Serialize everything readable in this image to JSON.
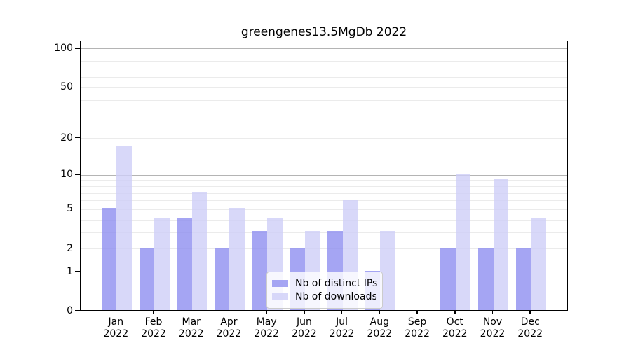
{
  "title": "greengenes13.5MgDb 2022",
  "chart_data": {
    "type": "bar",
    "title": "greengenes13.5MgDb 2022",
    "x_tick_months": [
      "Jan",
      "Feb",
      "Mar",
      "Apr",
      "May",
      "Jun",
      "Jul",
      "Aug",
      "Sep",
      "Oct",
      "Nov",
      "Dec"
    ],
    "x_tick_year": "2022",
    "categories": [
      "Jan 2022",
      "Feb 2022",
      "Mar 2022",
      "Apr 2022",
      "May 2022",
      "Jun 2022",
      "Jul 2022",
      "Aug 2022",
      "Sep 2022",
      "Oct 2022",
      "Nov 2022",
      "Dec 2022"
    ],
    "series": [
      {
        "name": "Nb of distinct IPs",
        "color": "rgba(143,143,240,0.8)",
        "values": [
          5,
          2,
          4,
          2,
          3,
          2,
          3,
          1,
          0,
          2,
          2,
          2
        ]
      },
      {
        "name": "Nb of downloads",
        "color": "rgba(206,206,248,0.8)",
        "values": [
          17,
          4,
          7,
          5,
          4,
          3,
          6,
          3,
          0,
          10,
          9,
          4
        ]
      }
    ],
    "yscale": "log1p",
    "ylim": [
      0,
      114.6
    ],
    "ytick_values": [
      0,
      1,
      2,
      5,
      10,
      20,
      50,
      100
    ],
    "major_grid_values": [
      1,
      10,
      100
    ],
    "minor_grid_values": [
      2,
      3,
      4,
      5,
      6,
      7,
      8,
      9,
      20,
      30,
      40,
      50,
      60,
      70,
      80,
      90
    ],
    "grid": true,
    "xlabel": "",
    "ylabel": "",
    "legend": {
      "position": "lower center",
      "entries": [
        "Nb of distinct IPs",
        "Nb of downloads"
      ]
    }
  },
  "colors": {
    "bar_distinct_ips": "rgba(143,143,240,0.8)",
    "bar_downloads": "rgba(206,206,248,0.8)",
    "major_grid": "#b4b4b4",
    "minor_grid": "#ebebeb",
    "spine": "#000000",
    "background": "#ffffff"
  }
}
